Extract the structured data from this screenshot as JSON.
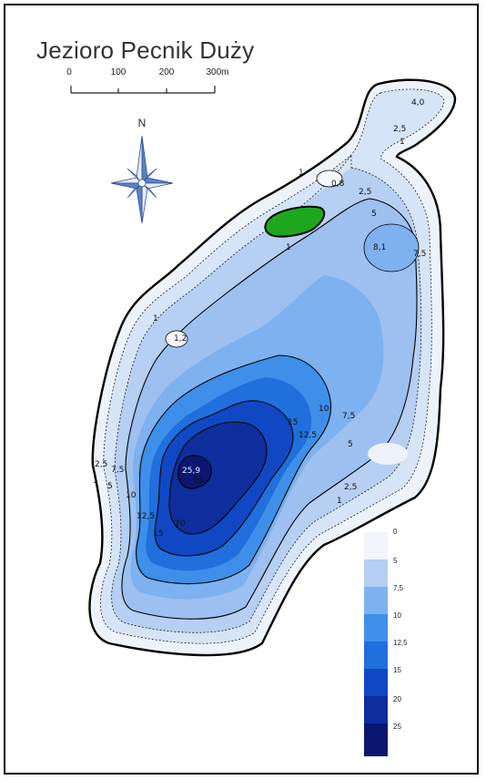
{
  "title": "Jezioro Pecnik Duży",
  "compass": {
    "label": "N",
    "icon": "compass-rose-icon"
  },
  "scale_bar": {
    "ticks": [
      "0",
      "100",
      "200",
      "300m"
    ]
  },
  "depth_labels": [
    "4,0",
    "2,5",
    "1",
    "1",
    "0,8",
    "2,5",
    "1",
    "5",
    "8,1",
    "7,5",
    "1",
    "1,2",
    "10",
    "7,5",
    "15",
    "12,5",
    "5",
    "2,5",
    "7,5",
    "1",
    "5",
    "10",
    "12,5",
    "15",
    "20",
    "25,9",
    "25",
    "2,5",
    "1"
  ],
  "legend": {
    "values": [
      "0",
      "5",
      "7,5",
      "10",
      "12,5",
      "15",
      "20",
      "25"
    ],
    "colors": [
      "#ffffff",
      "#b6cff2",
      "#7eb1ef",
      "#3d8fea",
      "#1f6fdd",
      "#1048c4",
      "#0d2e9c",
      "#0b1670"
    ]
  },
  "island_color": "#1fa61f"
}
